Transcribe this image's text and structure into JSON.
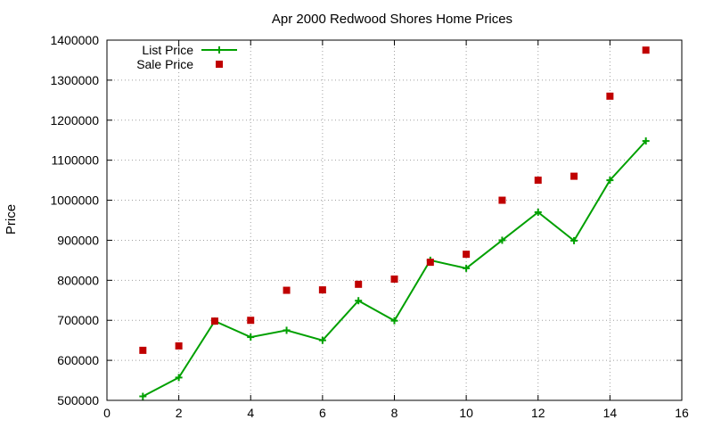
{
  "chart_data": {
    "type": "scatter",
    "title": "Apr 2000 Redwood Shores Home Prices",
    "xlabel": "",
    "ylabel": "Price",
    "xlim": [
      0,
      16
    ],
    "ylim": [
      500000,
      1400000
    ],
    "xticks": [
      "0",
      "2",
      "4",
      "6",
      "8",
      "10",
      "12",
      "14",
      "16"
    ],
    "yticks": [
      "500000",
      "600000",
      "700000",
      "800000",
      "900000",
      "1000000",
      "1100000",
      "1200000",
      "1300000",
      "1400000"
    ],
    "grid": true,
    "legend_position": "top-left",
    "series": [
      {
        "name": "List Price",
        "style": "lines+points",
        "marker": "plus",
        "color": "#00a000",
        "x": [
          1,
          2,
          3,
          4,
          5,
          6,
          7,
          8,
          9,
          10,
          11,
          12,
          13,
          14,
          15
        ],
        "y": [
          510000,
          557000,
          698000,
          658000,
          675000,
          650000,
          749000,
          699000,
          850000,
          830000,
          900000,
          970000,
          899000,
          1050000,
          1148000
        ]
      },
      {
        "name": "Sale Price",
        "style": "points",
        "marker": "square",
        "color": "#c00000",
        "x": [
          1,
          2,
          3,
          4,
          5,
          6,
          7,
          8,
          9,
          10,
          11,
          12,
          13,
          14,
          15
        ],
        "y": [
          625000,
          636000,
          698000,
          700000,
          775000,
          776000,
          790000,
          803000,
          845000,
          865000,
          1000000,
          1050000,
          1060000,
          1260000,
          1375000
        ]
      }
    ]
  }
}
